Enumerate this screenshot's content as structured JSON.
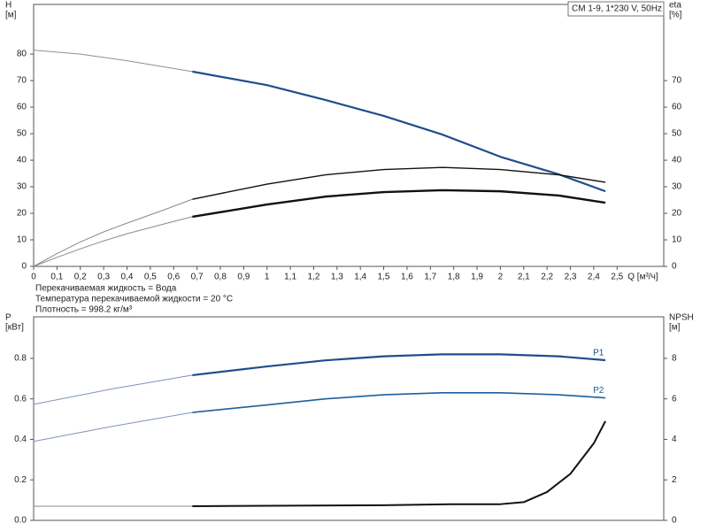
{
  "chart_data": [
    {
      "type": "line",
      "annotation": "CM 1-9, 1*230 V, 50Hz",
      "notes": [
        "Перекачиваемая жидкость = Вода",
        "Температура перекачиваемой жидкости = 20 °C",
        "Плотность = 998.2 кг/м³"
      ],
      "xlabel": "Q [м³/ч]",
      "ylabel": [
        "H",
        "[м]"
      ],
      "y2label": [
        "eta",
        "[%]"
      ],
      "xlim": [
        0,
        2.7
      ],
      "xticks": [
        0,
        {
          "value": 0.1,
          "label": "0,1"
        },
        {
          "value": 0.2,
          "label": "0,2"
        },
        {
          "value": 0.3,
          "label": "0,3"
        },
        {
          "value": 0.4,
          "label": "0,4"
        },
        {
          "value": 0.5,
          "label": "0,5"
        },
        {
          "value": 0.6,
          "label": "0,6"
        },
        {
          "value": 0.7,
          "label": "0,7"
        },
        {
          "value": 0.8,
          "label": "0,8"
        },
        {
          "value": 0.9,
          "label": "0,9"
        },
        1,
        {
          "value": 1.1,
          "label": "1,1"
        },
        {
          "value": 1.2,
          "label": "1,2"
        },
        {
          "value": 1.3,
          "label": "1,3"
        },
        {
          "value": 1.4,
          "label": "1,4"
        },
        {
          "value": 1.5,
          "label": "1,5"
        },
        {
          "value": 1.6,
          "label": "1,6"
        },
        {
          "value": 1.7,
          "label": "1,7"
        },
        {
          "value": 1.8,
          "label": "1,8"
        },
        {
          "value": 1.9,
          "label": "1,9"
        },
        2,
        {
          "value": 2.1,
          "label": "2,1"
        },
        {
          "value": 2.2,
          "label": "2,2"
        },
        {
          "value": 2.3,
          "label": "2,3"
        },
        {
          "value": 2.4,
          "label": "2,4"
        },
        {
          "value": 2.5,
          "label": "2,5"
        }
      ],
      "ylim": [
        0,
        98.7
      ],
      "yticks": [
        0,
        10,
        20,
        30,
        40,
        50,
        60,
        70,
        80
      ],
      "y2lim": [
        0,
        98.7
      ],
      "y2ticks": [
        0,
        10,
        20,
        30,
        40,
        50,
        60,
        70
      ],
      "series": [
        {
          "color": "#8a8f99",
          "width": 1,
          "x": [
            0,
            0.2,
            0.4,
            0.68
          ],
          "values": [
            81.5,
            80,
            77.5,
            73.4
          ]
        },
        {
          "color": "#1f4e8c",
          "width": 2.2,
          "x": [
            0.68,
            1.0,
            1.25,
            1.5,
            1.75,
            2.0,
            2.25,
            2.45
          ],
          "values": [
            73.4,
            68.3,
            62.7,
            56.7,
            49.7,
            41.3,
            34.7,
            28.3
          ]
        },
        {
          "color": "#8a8a8a",
          "width": 1,
          "axis": "y2",
          "x": [
            0,
            0.1,
            0.2,
            0.3,
            0.4,
            0.55,
            0.68
          ],
          "values": [
            0,
            4.8,
            9.2,
            13,
            16.3,
            21,
            25.3
          ]
        },
        {
          "color": "#111111",
          "width": 1.4,
          "axis": "y2",
          "x": [
            0.68,
            1.0,
            1.25,
            1.5,
            1.75,
            2.0,
            2.25,
            2.45
          ],
          "values": [
            25.3,
            31,
            34.5,
            36.5,
            37.3,
            36.5,
            34.5,
            31.7
          ]
        },
        {
          "color": "#8a8a8a",
          "width": 1,
          "axis": "y2",
          "x": [
            0,
            0.1,
            0.2,
            0.3,
            0.4,
            0.55,
            0.68
          ],
          "values": [
            0,
            3.4,
            6.6,
            9.6,
            12.3,
            15.8,
            18.7
          ]
        },
        {
          "color": "#111111",
          "width": 2.4,
          "axis": "y2",
          "x": [
            0.68,
            1.0,
            1.25,
            1.5,
            1.75,
            2.0,
            2.25,
            2.45
          ],
          "values": [
            18.7,
            23.3,
            26.3,
            28,
            28.7,
            28.3,
            26.7,
            24
          ]
        }
      ]
    },
    {
      "type": "line",
      "ylabel": [
        "P",
        "[кВт]"
      ],
      "y2label": [
        "NPSH",
        "[м]"
      ],
      "xlim": [
        0,
        2.7
      ],
      "ylim": [
        0,
        1.005
      ],
      "yticks": [
        {
          "value": 0,
          "label": "0.0"
        },
        0.2,
        0.4,
        0.6,
        0.8
      ],
      "y2lim": [
        0,
        10.05
      ],
      "y2ticks": [
        0,
        2,
        4,
        6,
        8
      ],
      "series": [
        {
          "color": "#7f94b5",
          "width": 1,
          "x": [
            0,
            0.34,
            0.68
          ],
          "values": [
            0.573,
            0.65,
            0.717
          ]
        },
        {
          "name": "P1",
          "color": "#1f4e8c",
          "width": 2.2,
          "x": [
            0.68,
            1.0,
            1.25,
            1.5,
            1.75,
            2.0,
            2.25,
            2.45
          ],
          "values": [
            0.717,
            0.76,
            0.79,
            0.81,
            0.82,
            0.82,
            0.81,
            0.791
          ]
        },
        {
          "color": "#7f94b5",
          "width": 1,
          "x": [
            0,
            0.34,
            0.68
          ],
          "values": [
            0.39,
            0.465,
            0.533
          ]
        },
        {
          "name": "P2",
          "color": "#1f5e9c",
          "width": 1.6,
          "x": [
            0.68,
            1.0,
            1.25,
            1.5,
            1.75,
            2.0,
            2.25,
            2.45
          ],
          "values": [
            0.533,
            0.57,
            0.6,
            0.62,
            0.63,
            0.63,
            0.62,
            0.605
          ]
        },
        {
          "color": "#8a8a8a",
          "width": 1,
          "axis": "y2",
          "x": [
            0,
            0.68
          ],
          "values": [
            0.7,
            0.7
          ]
        },
        {
          "color": "#111111",
          "width": 2,
          "axis": "y2",
          "x": [
            0.68,
            1.0,
            1.5,
            1.8,
            2.0,
            2.1,
            2.2,
            2.3,
            2.4,
            2.45
          ],
          "values": [
            0.7,
            0.72,
            0.75,
            0.8,
            0.8,
            0.9,
            1.4,
            2.3,
            3.8,
            4.9
          ]
        }
      ]
    }
  ]
}
